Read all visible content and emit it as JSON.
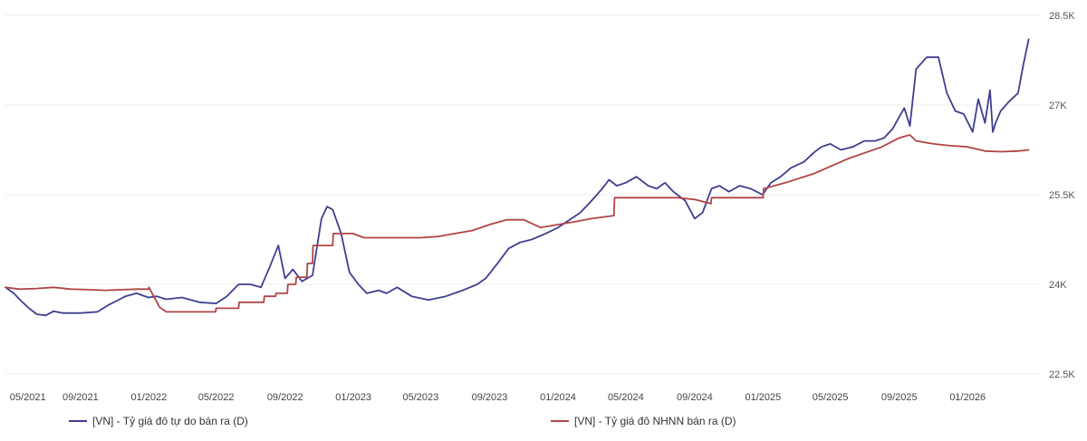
{
  "chart_data": {
    "type": "line",
    "title": "",
    "xlabel": "",
    "ylabel": "",
    "ylim": [
      22500,
      28500
    ],
    "y_ticks": [
      "28.5K",
      "27K",
      "25.5K",
      "24K",
      "22.5K"
    ],
    "y_tick_values": [
      28500,
      27000,
      25500,
      24000,
      22500
    ],
    "x_ticks": [
      "05/2021",
      "09/2021",
      "01/2022",
      "05/2022",
      "09/2022",
      "01/2023",
      "05/2023",
      "09/2023",
      "01/2024",
      "05/2024",
      "09/2024",
      "01/2025",
      "05/2025",
      "09/2025",
      "01/2026"
    ],
    "x_tick_dates": [
      "2021-05-01",
      "2021-09-01",
      "2022-01-01",
      "2022-05-01",
      "2022-09-01",
      "2023-01-01",
      "2023-05-01",
      "2023-09-01",
      "2024-01-01",
      "2024-05-01",
      "2024-09-01",
      "2025-01-01",
      "2025-05-01",
      "2025-09-01",
      "2026-01-01"
    ],
    "xlim": [
      "2021-04-20",
      "2026-05-10"
    ],
    "grid": "horizontal",
    "legend_position": "bottom",
    "series": [
      {
        "name": "[VN] - Tỷ giá đô tự do bán ra (D)",
        "color": "#3f3f8f",
        "x": [
          "2021-04-20",
          "2021-05-05",
          "2021-05-15",
          "2021-06-01",
          "2021-06-15",
          "2021-07-01",
          "2021-07-15",
          "2021-08-01",
          "2021-09-01",
          "2021-10-01",
          "2021-10-20",
          "2021-11-10",
          "2021-11-20",
          "2021-12-10",
          "2021-12-31",
          "2022-01-15",
          "2022-02-01",
          "2022-03-01",
          "2022-04-01",
          "2022-05-01",
          "2022-05-20",
          "2022-06-10",
          "2022-07-01",
          "2022-07-20",
          "2022-08-05",
          "2022-08-20",
          "2022-09-01",
          "2022-09-15",
          "2022-10-01",
          "2022-10-20",
          "2022-11-05",
          "2022-11-15",
          "2022-11-25",
          "2022-12-10",
          "2022-12-25",
          "2023-01-10",
          "2023-01-25",
          "2023-02-15",
          "2023-03-01",
          "2023-03-20",
          "2023-04-15",
          "2023-05-15",
          "2023-06-15",
          "2023-07-15",
          "2023-08-10",
          "2023-08-25",
          "2023-09-15",
          "2023-10-05",
          "2023-10-25",
          "2023-11-15",
          "2023-12-10",
          "2024-01-01",
          "2024-01-25",
          "2024-02-10",
          "2024-03-01",
          "2024-03-20",
          "2024-04-01",
          "2024-04-15",
          "2024-05-01",
          "2024-05-20",
          "2024-06-10",
          "2024-06-25",
          "2024-07-10",
          "2024-07-25",
          "2024-08-15",
          "2024-09-01",
          "2024-09-15",
          "2024-10-01",
          "2024-10-15",
          "2024-11-01",
          "2024-11-20",
          "2024-12-10",
          "2024-12-31",
          "2025-01-15",
          "2025-02-01",
          "2025-02-20",
          "2025-03-15",
          "2025-04-01",
          "2025-04-15",
          "2025-05-01",
          "2025-05-20",
          "2025-06-10",
          "2025-07-01",
          "2025-07-20",
          "2025-08-05",
          "2025-08-20",
          "2025-09-01",
          "2025-09-10",
          "2025-09-20",
          "2025-10-01",
          "2025-10-20",
          "2025-11-10",
          "2025-11-25",
          "2025-12-10",
          "2025-12-25",
          "2026-01-10",
          "2026-01-20",
          "2026-02-01",
          "2026-02-10",
          "2026-02-15",
          "2026-02-20",
          "2026-03-01",
          "2026-03-15",
          "2026-04-01",
          "2026-04-10",
          "2026-04-20"
        ],
        "y": [
          23950,
          23850,
          23750,
          23600,
          23500,
          23480,
          23550,
          23520,
          23520,
          23540,
          23650,
          23750,
          23800,
          23850,
          23780,
          23800,
          23750,
          23780,
          23700,
          23680,
          23800,
          24000,
          24000,
          23950,
          24300,
          24650,
          24100,
          24250,
          24050,
          24150,
          25100,
          25300,
          25250,
          24850,
          24200,
          24000,
          23850,
          23900,
          23850,
          23950,
          23800,
          23740,
          23800,
          23900,
          24000,
          24100,
          24350,
          24600,
          24700,
          24750,
          24850,
          24950,
          25100,
          25200,
          25400,
          25600,
          25750,
          25650,
          25700,
          25800,
          25650,
          25600,
          25700,
          25550,
          25400,
          25100,
          25200,
          25600,
          25650,
          25550,
          25650,
          25600,
          25500,
          25700,
          25800,
          25950,
          26050,
          26200,
          26300,
          26350,
          26250,
          26300,
          26400,
          26400,
          26450,
          26600,
          26800,
          26950,
          26650,
          27600,
          27800,
          27800,
          27200,
          26900,
          26850,
          26550,
          27100,
          26700,
          27250,
          26550,
          26700,
          26900,
          27050,
          27200,
          27650,
          28100
        ]
      },
      {
        "name": "[VN] - Tỷ giá đô NHNN bán ra (D)",
        "color": "#b04545",
        "x": [
          "2021-04-20",
          "2021-05-15",
          "2021-06-15",
          "2021-07-15",
          "2021-08-15",
          "2021-09-15",
          "2021-10-15",
          "2021-11-15",
          "2021-12-10",
          "2021-12-31",
          "2022-01-01",
          "2022-01-20",
          "2022-02-01",
          "2022-04-01",
          "2022-04-30",
          "2022-05-01",
          "2022-06-10",
          "2022-06-11",
          "2022-07-25",
          "2022-07-26",
          "2022-08-15",
          "2022-08-16",
          "2022-09-05",
          "2022-09-06",
          "2022-09-20",
          "2022-09-21",
          "2022-10-10",
          "2022-10-11",
          "2022-10-20",
          "2022-10-21",
          "2022-11-25",
          "2022-11-26",
          "2022-12-31",
          "2023-01-20",
          "2023-03-01",
          "2023-05-01",
          "2023-06-01",
          "2023-07-01",
          "2023-08-01",
          "2023-09-01",
          "2023-10-01",
          "2023-11-01",
          "2023-12-01",
          "2024-01-01",
          "2024-02-01",
          "2024-03-01",
          "2024-04-10",
          "2024-04-11",
          "2024-06-01",
          "2024-08-01",
          "2024-09-01",
          "2024-09-30",
          "2024-10-01",
          "2024-11-01",
          "2025-01-01",
          "2025-01-02",
          "2025-02-10",
          "2025-04-01",
          "2025-06-01",
          "2025-08-01",
          "2025-09-01",
          "2025-09-20",
          "2025-10-01",
          "2025-11-01",
          "2025-12-01",
          "2026-01-01",
          "2026-02-01",
          "2026-03-01",
          "2026-04-01",
          "2026-04-20"
        ],
        "y": [
          23950,
          23920,
          23930,
          23950,
          23920,
          23910,
          23900,
          23910,
          23920,
          23920,
          23950,
          23620,
          23540,
          23540,
          23540,
          23600,
          23600,
          23700,
          23700,
          23800,
          23800,
          23850,
          23850,
          24000,
          24000,
          24120,
          24120,
          24350,
          24350,
          24650,
          24650,
          24850,
          24850,
          24780,
          24780,
          24780,
          24800,
          24850,
          24900,
          25000,
          25080,
          25080,
          24950,
          25000,
          25050,
          25100,
          25150,
          25450,
          25450,
          25450,
          25420,
          25350,
          25450,
          25450,
          25450,
          25600,
          25700,
          25850,
          26100,
          26300,
          26450,
          26500,
          26400,
          26350,
          26320,
          26300,
          26230,
          26220,
          26230,
          26250
        ]
      }
    ]
  }
}
